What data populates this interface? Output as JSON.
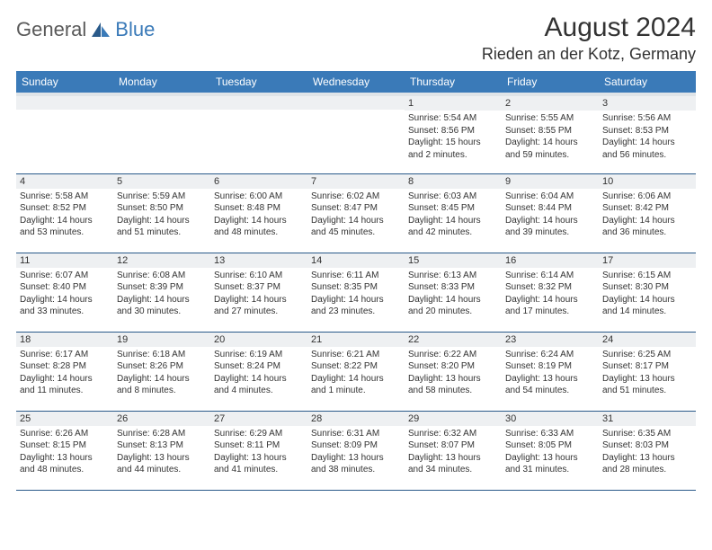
{
  "logo": {
    "general": "General",
    "blue": "Blue"
  },
  "title": "August 2024",
  "location": "Rieden an der Kotz, Germany",
  "colors": {
    "header_bg": "#3a7ab8",
    "header_underline": "#dfe4e8",
    "row_divider": "#2a5a8a",
    "daynum_bg": "#eef0f2",
    "text": "#333333",
    "logo_gray": "#5a5a5a",
    "logo_blue": "#3a7ab8"
  },
  "typography": {
    "title_size": 30,
    "location_size": 18,
    "weekday_size": 12,
    "daynum_size": 11,
    "info_size": 10
  },
  "weekdays": [
    "Sunday",
    "Monday",
    "Tuesday",
    "Wednesday",
    "Thursday",
    "Friday",
    "Saturday"
  ],
  "weeks": [
    [
      null,
      null,
      null,
      null,
      {
        "n": "1",
        "sr": "Sunrise: 5:54 AM",
        "ss": "Sunset: 8:56 PM",
        "dl1": "Daylight: 15 hours",
        "dl2": "and 2 minutes."
      },
      {
        "n": "2",
        "sr": "Sunrise: 5:55 AM",
        "ss": "Sunset: 8:55 PM",
        "dl1": "Daylight: 14 hours",
        "dl2": "and 59 minutes."
      },
      {
        "n": "3",
        "sr": "Sunrise: 5:56 AM",
        "ss": "Sunset: 8:53 PM",
        "dl1": "Daylight: 14 hours",
        "dl2": "and 56 minutes."
      }
    ],
    [
      {
        "n": "4",
        "sr": "Sunrise: 5:58 AM",
        "ss": "Sunset: 8:52 PM",
        "dl1": "Daylight: 14 hours",
        "dl2": "and 53 minutes."
      },
      {
        "n": "5",
        "sr": "Sunrise: 5:59 AM",
        "ss": "Sunset: 8:50 PM",
        "dl1": "Daylight: 14 hours",
        "dl2": "and 51 minutes."
      },
      {
        "n": "6",
        "sr": "Sunrise: 6:00 AM",
        "ss": "Sunset: 8:48 PM",
        "dl1": "Daylight: 14 hours",
        "dl2": "and 48 minutes."
      },
      {
        "n": "7",
        "sr": "Sunrise: 6:02 AM",
        "ss": "Sunset: 8:47 PM",
        "dl1": "Daylight: 14 hours",
        "dl2": "and 45 minutes."
      },
      {
        "n": "8",
        "sr": "Sunrise: 6:03 AM",
        "ss": "Sunset: 8:45 PM",
        "dl1": "Daylight: 14 hours",
        "dl2": "and 42 minutes."
      },
      {
        "n": "9",
        "sr": "Sunrise: 6:04 AM",
        "ss": "Sunset: 8:44 PM",
        "dl1": "Daylight: 14 hours",
        "dl2": "and 39 minutes."
      },
      {
        "n": "10",
        "sr": "Sunrise: 6:06 AM",
        "ss": "Sunset: 8:42 PM",
        "dl1": "Daylight: 14 hours",
        "dl2": "and 36 minutes."
      }
    ],
    [
      {
        "n": "11",
        "sr": "Sunrise: 6:07 AM",
        "ss": "Sunset: 8:40 PM",
        "dl1": "Daylight: 14 hours",
        "dl2": "and 33 minutes."
      },
      {
        "n": "12",
        "sr": "Sunrise: 6:08 AM",
        "ss": "Sunset: 8:39 PM",
        "dl1": "Daylight: 14 hours",
        "dl2": "and 30 minutes."
      },
      {
        "n": "13",
        "sr": "Sunrise: 6:10 AM",
        "ss": "Sunset: 8:37 PM",
        "dl1": "Daylight: 14 hours",
        "dl2": "and 27 minutes."
      },
      {
        "n": "14",
        "sr": "Sunrise: 6:11 AM",
        "ss": "Sunset: 8:35 PM",
        "dl1": "Daylight: 14 hours",
        "dl2": "and 23 minutes."
      },
      {
        "n": "15",
        "sr": "Sunrise: 6:13 AM",
        "ss": "Sunset: 8:33 PM",
        "dl1": "Daylight: 14 hours",
        "dl2": "and 20 minutes."
      },
      {
        "n": "16",
        "sr": "Sunrise: 6:14 AM",
        "ss": "Sunset: 8:32 PM",
        "dl1": "Daylight: 14 hours",
        "dl2": "and 17 minutes."
      },
      {
        "n": "17",
        "sr": "Sunrise: 6:15 AM",
        "ss": "Sunset: 8:30 PM",
        "dl1": "Daylight: 14 hours",
        "dl2": "and 14 minutes."
      }
    ],
    [
      {
        "n": "18",
        "sr": "Sunrise: 6:17 AM",
        "ss": "Sunset: 8:28 PM",
        "dl1": "Daylight: 14 hours",
        "dl2": "and 11 minutes."
      },
      {
        "n": "19",
        "sr": "Sunrise: 6:18 AM",
        "ss": "Sunset: 8:26 PM",
        "dl1": "Daylight: 14 hours",
        "dl2": "and 8 minutes."
      },
      {
        "n": "20",
        "sr": "Sunrise: 6:19 AM",
        "ss": "Sunset: 8:24 PM",
        "dl1": "Daylight: 14 hours",
        "dl2": "and 4 minutes."
      },
      {
        "n": "21",
        "sr": "Sunrise: 6:21 AM",
        "ss": "Sunset: 8:22 PM",
        "dl1": "Daylight: 14 hours",
        "dl2": "and 1 minute."
      },
      {
        "n": "22",
        "sr": "Sunrise: 6:22 AM",
        "ss": "Sunset: 8:20 PM",
        "dl1": "Daylight: 13 hours",
        "dl2": "and 58 minutes."
      },
      {
        "n": "23",
        "sr": "Sunrise: 6:24 AM",
        "ss": "Sunset: 8:19 PM",
        "dl1": "Daylight: 13 hours",
        "dl2": "and 54 minutes."
      },
      {
        "n": "24",
        "sr": "Sunrise: 6:25 AM",
        "ss": "Sunset: 8:17 PM",
        "dl1": "Daylight: 13 hours",
        "dl2": "and 51 minutes."
      }
    ],
    [
      {
        "n": "25",
        "sr": "Sunrise: 6:26 AM",
        "ss": "Sunset: 8:15 PM",
        "dl1": "Daylight: 13 hours",
        "dl2": "and 48 minutes."
      },
      {
        "n": "26",
        "sr": "Sunrise: 6:28 AM",
        "ss": "Sunset: 8:13 PM",
        "dl1": "Daylight: 13 hours",
        "dl2": "and 44 minutes."
      },
      {
        "n": "27",
        "sr": "Sunrise: 6:29 AM",
        "ss": "Sunset: 8:11 PM",
        "dl1": "Daylight: 13 hours",
        "dl2": "and 41 minutes."
      },
      {
        "n": "28",
        "sr": "Sunrise: 6:31 AM",
        "ss": "Sunset: 8:09 PM",
        "dl1": "Daylight: 13 hours",
        "dl2": "and 38 minutes."
      },
      {
        "n": "29",
        "sr": "Sunrise: 6:32 AM",
        "ss": "Sunset: 8:07 PM",
        "dl1": "Daylight: 13 hours",
        "dl2": "and 34 minutes."
      },
      {
        "n": "30",
        "sr": "Sunrise: 6:33 AM",
        "ss": "Sunset: 8:05 PM",
        "dl1": "Daylight: 13 hours",
        "dl2": "and 31 minutes."
      },
      {
        "n": "31",
        "sr": "Sunrise: 6:35 AM",
        "ss": "Sunset: 8:03 PM",
        "dl1": "Daylight: 13 hours",
        "dl2": "and 28 minutes."
      }
    ]
  ]
}
